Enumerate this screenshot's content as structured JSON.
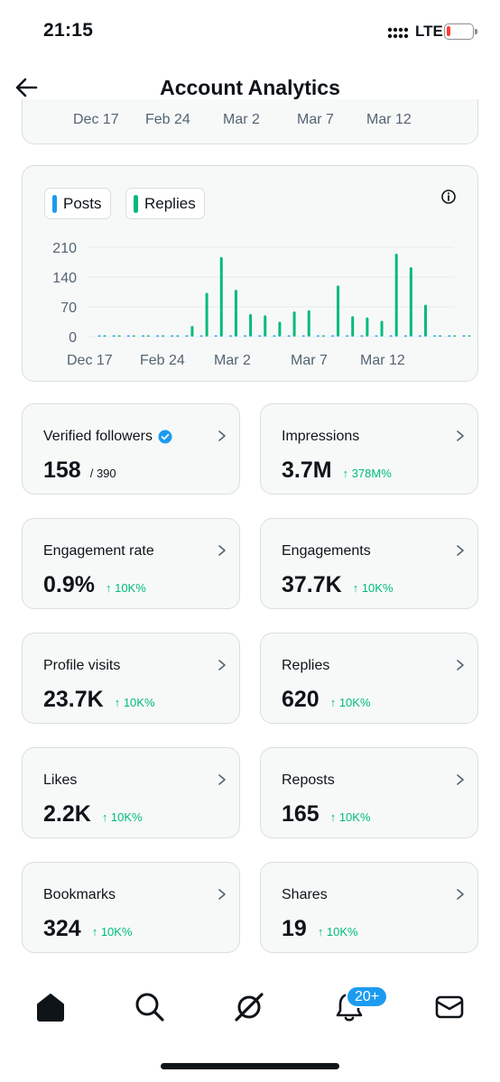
{
  "status_bar": {
    "time": "21:15",
    "network": "LTE",
    "battery_level": 0.15,
    "battery_color": "#ff3b30"
  },
  "header": {
    "title": "Account Analytics"
  },
  "previous_chart": {
    "x_ticks": [
      "Dec 17",
      "Feb 24",
      "Mar 2",
      "Mar 7",
      "Mar 12"
    ]
  },
  "colors": {
    "posts": "#1d9bf0",
    "replies": "#00ba7c",
    "positive": "#00ba7c",
    "accent": "#1d9bf0"
  },
  "chart_data": {
    "type": "bar",
    "legend": [
      "Posts",
      "Replies"
    ],
    "y_ticks": [
      "210",
      "140",
      "70",
      "0"
    ],
    "ylim": [
      0,
      210
    ],
    "x_ticks": [
      "Dec 17",
      "Feb 24",
      "Mar 2",
      "Mar 7",
      "Mar 12"
    ],
    "series": [
      {
        "name": "Posts",
        "values": [
          0,
          0,
          0,
          0,
          0,
          0,
          0,
          0,
          0,
          0,
          0,
          0,
          0,
          0,
          0,
          0,
          0,
          0,
          0,
          0,
          0,
          0,
          0,
          0,
          0,
          0,
          0
        ]
      },
      {
        "name": "Replies",
        "values": [
          0,
          0,
          0,
          0,
          0,
          3,
          25,
          103,
          187,
          110,
          53,
          50,
          35,
          59,
          62,
          3,
          120,
          48,
          45,
          37,
          195,
          163,
          75,
          0,
          0,
          0,
          0
        ]
      }
    ]
  },
  "metrics": [
    {
      "label": "Verified followers",
      "value": "158",
      "sub": "/ 390",
      "verified": true
    },
    {
      "label": "Impressions",
      "value": "3.7M",
      "change": "↑ 378M%"
    },
    {
      "label": "Engagement rate",
      "value": "0.9%",
      "change": "↑ 10K%"
    },
    {
      "label": "Engagements",
      "value": "37.7K",
      "change": "↑ 10K%"
    },
    {
      "label": "Profile visits",
      "value": "23.7K",
      "change": "↑ 10K%"
    },
    {
      "label": "Replies",
      "value": "620",
      "change": "↑ 10K%"
    },
    {
      "label": "Likes",
      "value": "2.2K",
      "change": "↑ 10K%"
    },
    {
      "label": "Reposts",
      "value": "165",
      "change": "↑ 10K%"
    },
    {
      "label": "Bookmarks",
      "value": "324",
      "change": "↑ 10K%"
    },
    {
      "label": "Shares",
      "value": "19",
      "change": "↑ 10K%"
    }
  ],
  "tab_bar": {
    "tabs": [
      "home-icon",
      "search-icon",
      "grok-icon",
      "notifications-icon",
      "messages-icon"
    ],
    "notifications_badge": "20+"
  }
}
